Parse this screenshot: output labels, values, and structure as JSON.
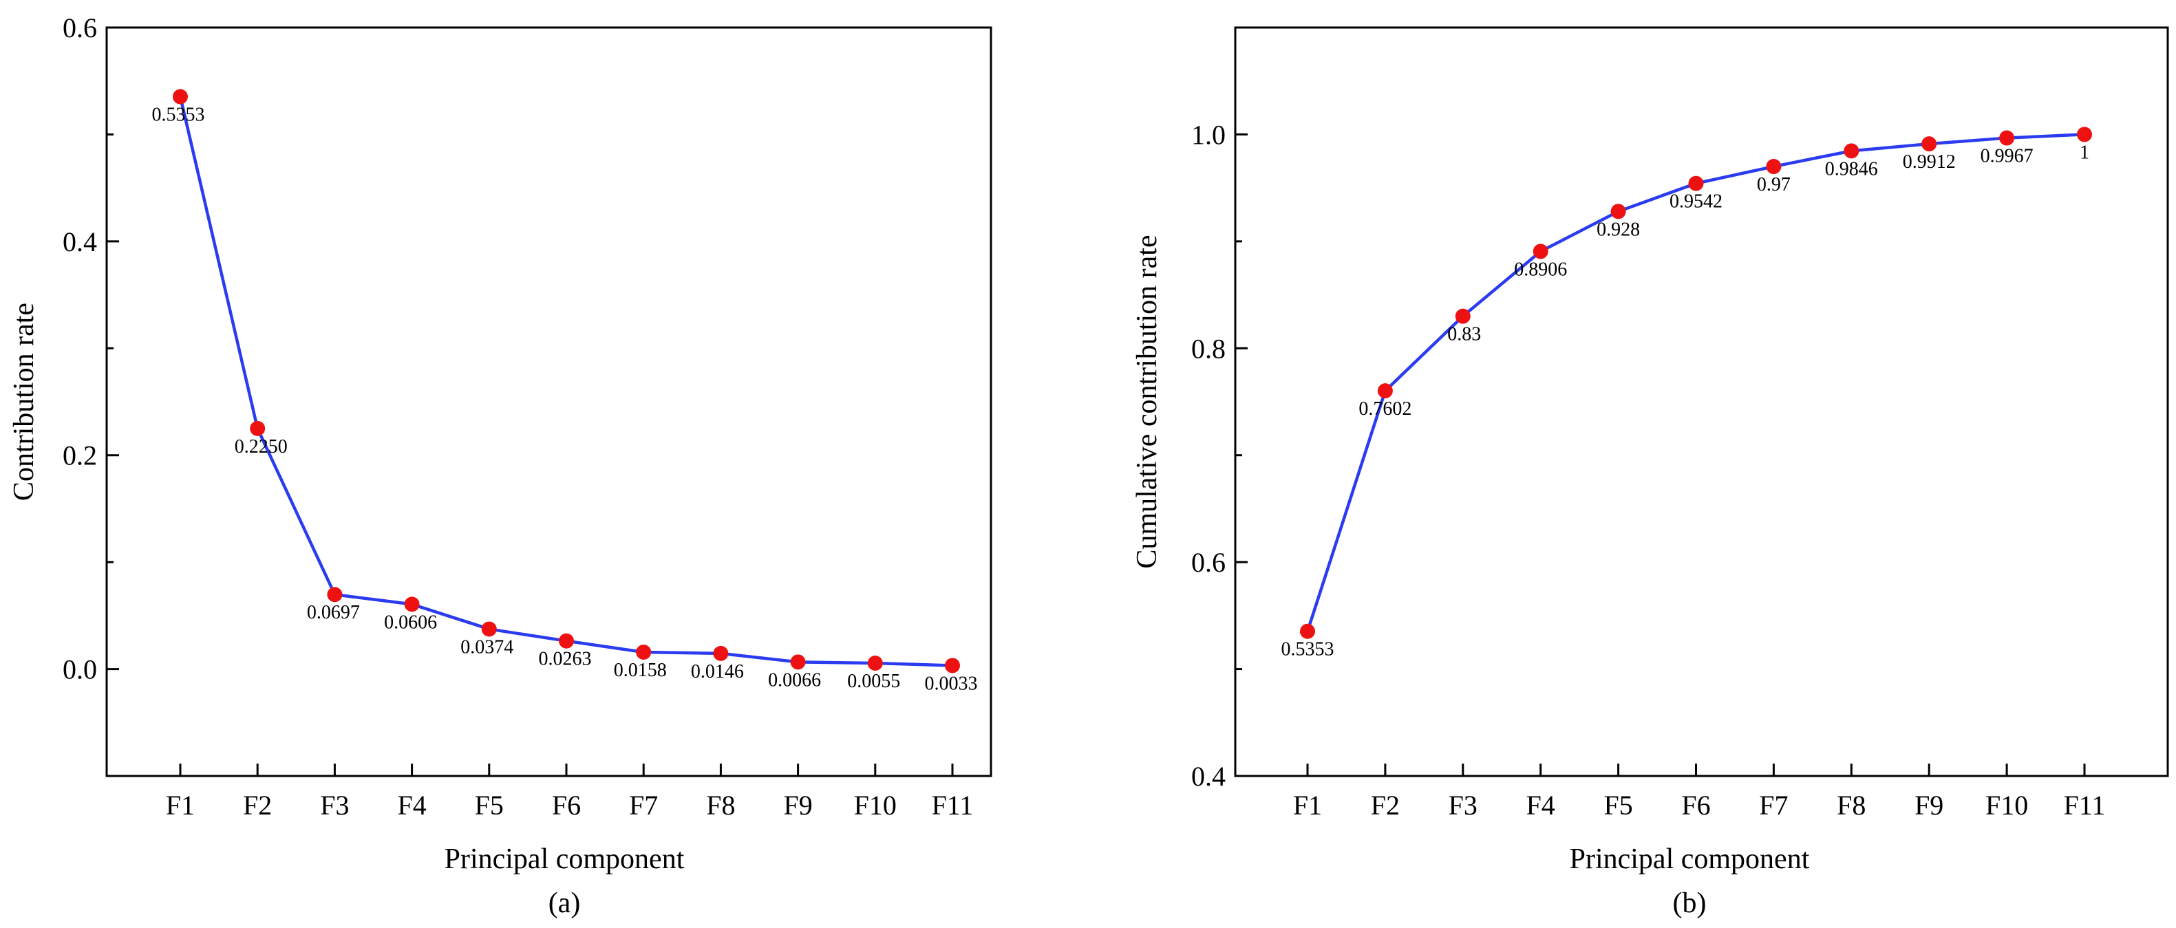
{
  "chart_data": [
    {
      "type": "line",
      "id": "a",
      "caption": "(a)",
      "xlabel": "Principal component",
      "ylabel": "Contribution rate",
      "categories": [
        "F1",
        "F2",
        "F3",
        "F4",
        "F5",
        "F6",
        "F7",
        "F8",
        "F9",
        "F10",
        "F11"
      ],
      "values": [
        0.5353,
        0.225,
        0.0697,
        0.0606,
        0.0374,
        0.0263,
        0.0158,
        0.0146,
        0.0066,
        0.0055,
        0.0033
      ],
      "value_labels": [
        "0.5353",
        "0.2250",
        "0.0697",
        "0.0606",
        "0.0374",
        "0.0263",
        "0.0158",
        "0.0146",
        "0.0066",
        "0.0055",
        "0.0033"
      ],
      "ylim": [
        -0.1,
        0.6
      ],
      "yticks": [
        0.0,
        0.2,
        0.4,
        0.6
      ],
      "ytick_labels": [
        "0.0",
        "0.2",
        "0.4",
        "0.6"
      ],
      "grid": false,
      "line_color": "#2b3cf0",
      "marker_color": "#ee1111"
    },
    {
      "type": "line",
      "id": "b",
      "caption": "(b)",
      "xlabel": "Principal component",
      "ylabel": "Cumulative contribution rate",
      "categories": [
        "F1",
        "F2",
        "F3",
        "F4",
        "F5",
        "F6",
        "F7",
        "F8",
        "F9",
        "F10",
        "F11"
      ],
      "values": [
        0.5353,
        0.7602,
        0.83,
        0.8906,
        0.928,
        0.9542,
        0.97,
        0.9846,
        0.9912,
        0.9967,
        1.0
      ],
      "value_labels": [
        "0.5353",
        "0.7602",
        "0.83",
        "0.8906",
        "0.928",
        "0.9542",
        "0.97",
        "0.9846",
        "0.9912",
        "0.9967",
        "1"
      ],
      "ylim": [
        0.4,
        1.1
      ],
      "yticks": [
        0.4,
        0.6,
        0.8,
        1.0
      ],
      "ytick_labels": [
        "0.4",
        "0.6",
        "0.8",
        "1.0"
      ],
      "grid": false,
      "line_color": "#2b3cf0",
      "marker_color": "#ee1111"
    }
  ]
}
